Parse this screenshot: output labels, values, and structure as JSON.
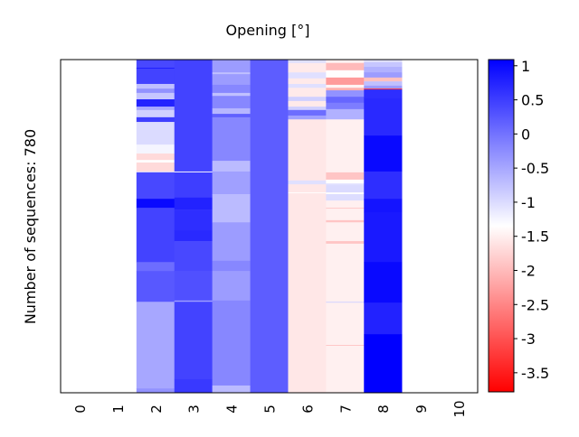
{
  "chart_data": {
    "type": "heatmap",
    "title": "Opening [°]",
    "xlabel": "",
    "ylabel": "Number of sequences: 780",
    "n_rows": 780,
    "x_categories": [
      "0",
      "1",
      "2",
      "3",
      "4",
      "5",
      "6",
      "7",
      "8",
      "9",
      "10"
    ],
    "colormap": "bwr",
    "colorbar": {
      "range": [
        -3.78,
        1.09
      ],
      "ticks": [
        1,
        0.5,
        0,
        -0.5,
        -1,
        -1.5,
        -2,
        -2.5,
        -3,
        -3.5
      ],
      "tick_labels": [
        "1",
        "0.5",
        "0",
        "-0.5",
        "-1",
        "-1.5",
        "-2",
        "-2.5",
        "-3",
        "-3.5"
      ]
    },
    "columns": [
      {
        "x": 2,
        "segments": [
          [
            0,
            19,
            0.4
          ],
          [
            19,
            21,
            0.8
          ],
          [
            21,
            57,
            0.45
          ],
          [
            57,
            68,
            -0.74
          ],
          [
            68,
            78,
            -0.3
          ],
          [
            78,
            93,
            -0.8
          ],
          [
            93,
            110,
            0.77
          ],
          [
            110,
            118,
            -0.5
          ],
          [
            118,
            135,
            -0.9
          ],
          [
            135,
            146,
            0.5
          ],
          [
            146,
            199,
            -1.0
          ],
          [
            199,
            220,
            -1.25
          ],
          [
            220,
            235,
            -1.7
          ],
          [
            235,
            241,
            -1.35
          ],
          [
            241,
            262,
            -1.7
          ],
          [
            262,
            264,
            -1.1
          ],
          [
            264,
            326,
            0.4
          ],
          [
            326,
            347,
            1.0
          ],
          [
            347,
            474,
            0.45
          ],
          [
            474,
            495,
            0.05
          ],
          [
            495,
            567,
            0.25
          ],
          [
            567,
            770,
            -0.5
          ],
          [
            770,
            780,
            -0.3
          ]
        ]
      },
      {
        "x": 3,
        "segments": [
          [
            0,
            262,
            0.45
          ],
          [
            262,
            264,
            -1.35
          ],
          [
            264,
            323,
            0.5
          ],
          [
            323,
            351,
            0.77
          ],
          [
            351,
            400,
            0.65
          ],
          [
            400,
            425,
            0.7
          ],
          [
            425,
            495,
            0.4
          ],
          [
            495,
            564,
            0.33
          ],
          [
            564,
            567,
            -0.44
          ],
          [
            567,
            748,
            0.45
          ],
          [
            748,
            780,
            0.55
          ]
        ]
      },
      {
        "x": 4,
        "segments": [
          [
            0,
            30,
            -0.4
          ],
          [
            30,
            34,
            -0.74
          ],
          [
            34,
            59,
            -0.4
          ],
          [
            59,
            78,
            -0.2
          ],
          [
            78,
            85,
            -0.74
          ],
          [
            85,
            114,
            -0.2
          ],
          [
            114,
            127,
            -0.65
          ],
          [
            127,
            135,
            0.17
          ],
          [
            135,
            237,
            -0.2
          ],
          [
            237,
            262,
            -0.7
          ],
          [
            262,
            315,
            -0.44
          ],
          [
            315,
            381,
            -0.7
          ],
          [
            381,
            471,
            -0.4
          ],
          [
            471,
            495,
            -0.2
          ],
          [
            495,
            564,
            -0.4
          ],
          [
            564,
            763,
            -0.2
          ],
          [
            763,
            780,
            -0.7
          ]
        ]
      },
      {
        "x": 5,
        "segments": [
          [
            0,
            780,
            0.2
          ]
        ]
      },
      {
        "x": 6,
        "segments": [
          [
            0,
            8,
            -1.05
          ],
          [
            8,
            30,
            -1.55
          ],
          [
            30,
            44,
            -1.05
          ],
          [
            44,
            57,
            -1.55
          ],
          [
            57,
            66,
            -1.05
          ],
          [
            66,
            87,
            -1.55
          ],
          [
            87,
            97,
            -0.9
          ],
          [
            97,
            110,
            -1.55
          ],
          [
            110,
            118,
            -0.9
          ],
          [
            118,
            131,
            0.05
          ],
          [
            131,
            140,
            -0.44
          ],
          [
            140,
            283,
            -1.57
          ],
          [
            283,
            292,
            -1.05
          ],
          [
            292,
            311,
            -1.57
          ],
          [
            311,
            313,
            -1.35
          ],
          [
            313,
            780,
            -1.57
          ]
        ]
      },
      {
        "x": 7,
        "segments": [
          [
            0,
            8,
            -1.49
          ],
          [
            8,
            25,
            -2.0
          ],
          [
            25,
            42,
            -1.35
          ],
          [
            42,
            59,
            -2.3
          ],
          [
            59,
            66,
            -1.45
          ],
          [
            66,
            72,
            -2.1
          ],
          [
            72,
            87,
            -0.3
          ],
          [
            87,
            101,
            0.12
          ],
          [
            101,
            116,
            -0.1
          ],
          [
            116,
            140,
            -0.6
          ],
          [
            140,
            264,
            -1.49
          ],
          [
            264,
            281,
            -1.9
          ],
          [
            281,
            290,
            -1.35
          ],
          [
            290,
            294,
            -1.05
          ],
          [
            294,
            311,
            -1.0
          ],
          [
            311,
            315,
            -1.35
          ],
          [
            315,
            330,
            -1.02
          ],
          [
            330,
            347,
            -1.49
          ],
          [
            347,
            349,
            -1.9
          ],
          [
            349,
            376,
            -1.49
          ],
          [
            376,
            381,
            -1.9
          ],
          [
            381,
            425,
            -1.49
          ],
          [
            425,
            431,
            -1.9
          ],
          [
            431,
            567,
            -1.49
          ],
          [
            567,
            569,
            -0.9
          ],
          [
            569,
            668,
            -1.49
          ],
          [
            668,
            670,
            -1.9
          ],
          [
            670,
            780,
            -1.49
          ]
        ]
      },
      {
        "x": 8,
        "segments": [
          [
            0,
            6,
            -1.05
          ],
          [
            6,
            17,
            -0.8
          ],
          [
            17,
            30,
            -0.6
          ],
          [
            30,
            42,
            -0.4
          ],
          [
            42,
            51,
            -1.95
          ],
          [
            51,
            61,
            -0.74
          ],
          [
            61,
            68,
            -0.4
          ],
          [
            68,
            70,
            -3.4
          ],
          [
            70,
            89,
            0.65
          ],
          [
            89,
            178,
            0.7
          ],
          [
            178,
            262,
            1.0
          ],
          [
            262,
            326,
            0.65
          ],
          [
            326,
            357,
            0.9
          ],
          [
            357,
            474,
            0.85
          ],
          [
            474,
            569,
            1.0
          ],
          [
            569,
            643,
            0.77
          ],
          [
            643,
            780,
            1.09
          ]
        ]
      }
    ]
  }
}
